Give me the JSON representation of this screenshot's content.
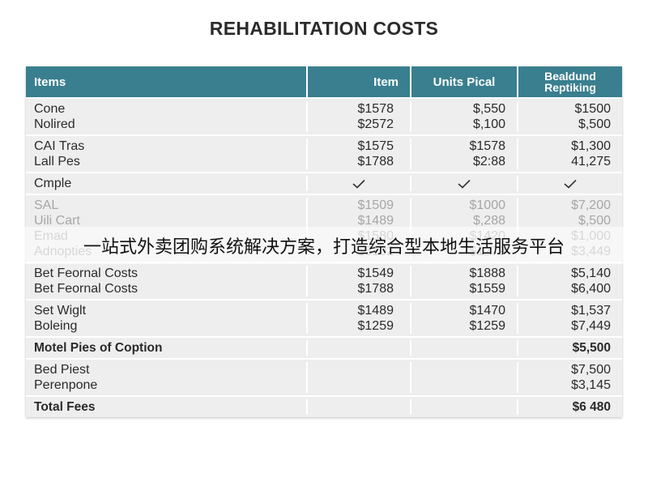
{
  "title": "REHABILITATION COSTS",
  "columns": [
    "Items",
    "Item",
    "Units Pical",
    "Bealdund Reptiking"
  ],
  "column_last_line1": "Bealdund",
  "column_last_line2": "Reptiking",
  "groups": [
    {
      "rows": [
        [
          "Cone",
          "$1578",
          "$,550",
          "$1500"
        ],
        [
          "Nolired",
          "$2572",
          "$,100",
          "$,500"
        ]
      ]
    },
    {
      "rows": [
        [
          "CAI Tras",
          "$1575",
          "$1578",
          "$1,300"
        ],
        [
          "Lall Pes",
          "$1788",
          "$2:88",
          "41,275"
        ]
      ]
    },
    {
      "rows": [
        [
          "Cmple",
          "check",
          "check",
          "check"
        ]
      ]
    },
    {
      "rows": [
        [
          "SAL",
          "$1509",
          "$1000",
          "$7,200"
        ],
        [
          "Uili Cart",
          "$1489",
          "$,288",
          "$,500"
        ],
        [
          "Emad",
          "$1580",
          "$1420",
          "$1,000"
        ],
        [
          "Adnopties",
          "$5102",
          "$1279",
          "$3,449"
        ]
      ],
      "faded": true
    },
    {
      "rows": [
        [
          "Bet Feornal Costs",
          "$1549",
          "$1888",
          "$5,140"
        ],
        [
          "Bet Feornal Costs",
          "$1788",
          "$1559",
          "$6,400"
        ]
      ]
    },
    {
      "rows": [
        [
          "Set Wiglt",
          "$1489",
          "$1470",
          "$1,537"
        ],
        [
          "Boleing",
          "$1259",
          "$1259",
          "$7,449"
        ]
      ]
    },
    {
      "rows": [
        [
          "Motel Pies of Coption",
          "",
          "",
          "$5,500"
        ]
      ],
      "bold": true
    },
    {
      "rows": [
        [
          "Bed Piest",
          "",
          "",
          "$7,500"
        ],
        [
          "Perenpone",
          "",
          "",
          "$3,145"
        ]
      ]
    },
    {
      "rows": [
        [
          "Total Fees",
          "",
          "",
          "$6 480"
        ]
      ],
      "bold": true
    }
  ],
  "banner": "一站式外卖团购系统解决方案，打造综合型本地生活服务平台",
  "colors": {
    "header": "#3a7f8f",
    "table_bg": "#eeeeee"
  },
  "icons": {
    "check": "check-icon"
  }
}
